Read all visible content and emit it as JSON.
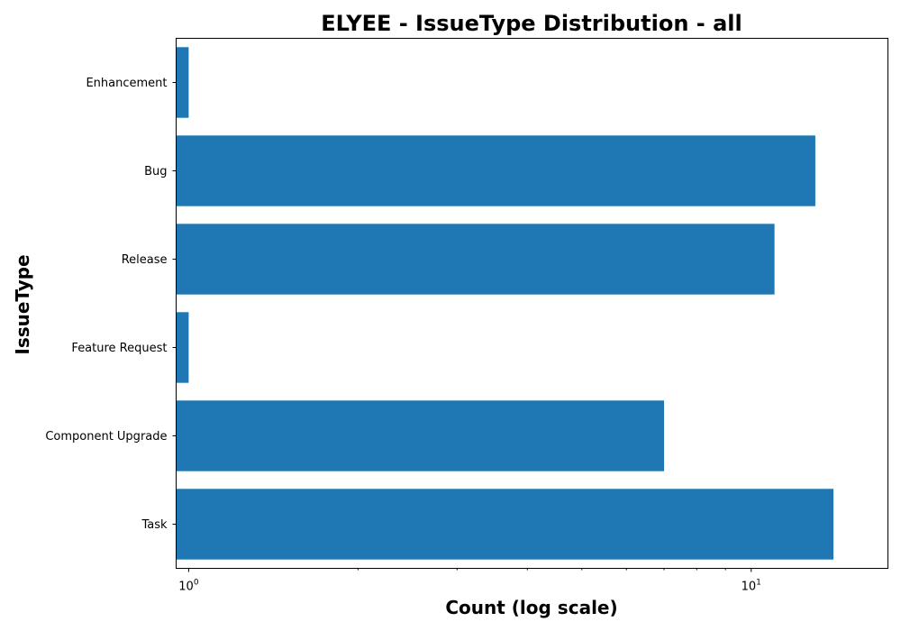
{
  "chart_data": {
    "type": "bar",
    "orientation": "horizontal",
    "title": "ELYEE - IssueType Distribution - all",
    "xlabel": "Count (log scale)",
    "ylabel": "IssueType",
    "x_scale": "log",
    "xlim": [
      0.95,
      17.5
    ],
    "xticks": [
      {
        "value": 1,
        "base": "10",
        "exp": "0"
      },
      {
        "value": 10,
        "base": "10",
        "exp": "1"
      }
    ],
    "categories": [
      "Task",
      "Component Upgrade",
      "Feature Request",
      "Release",
      "Bug",
      "Enhancement"
    ],
    "values": [
      14,
      7,
      1,
      11,
      13,
      1
    ],
    "bar_color": "#1f77b4",
    "grid": false
  }
}
